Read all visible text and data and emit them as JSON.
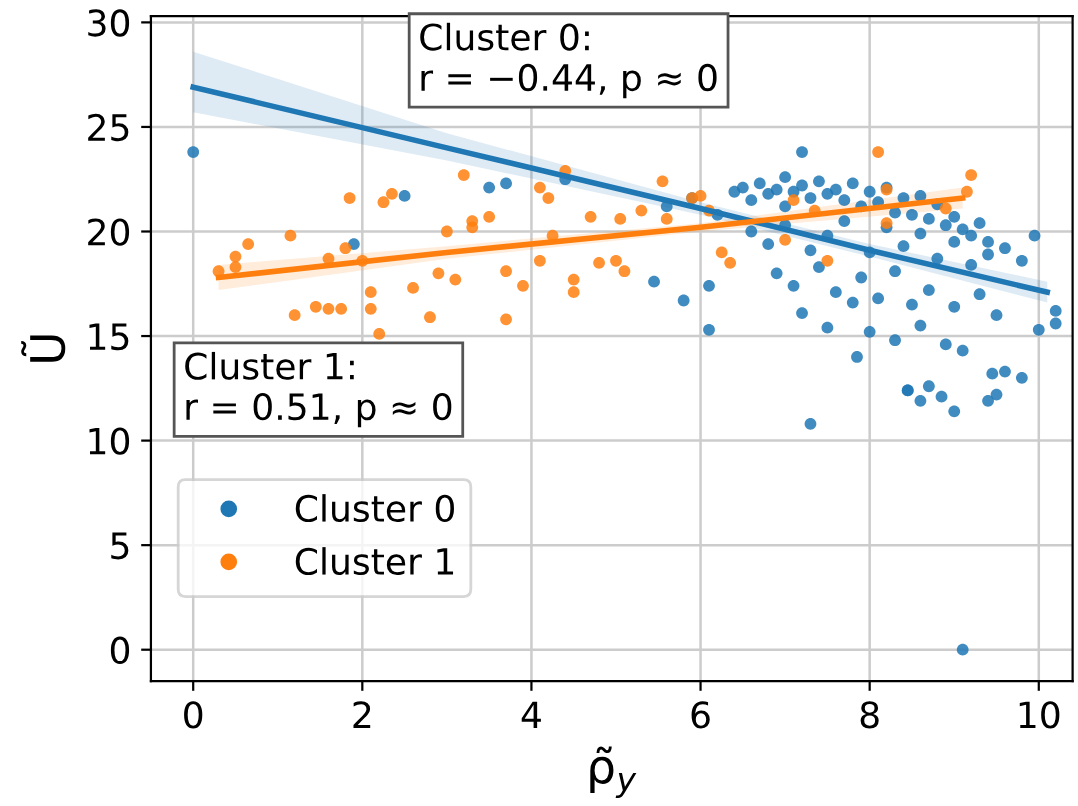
{
  "chart_data": {
    "type": "scatter",
    "xlabel": "ρ̃$_{y}$",
    "ylabel": "Ũ",
    "xlim": [
      -0.5,
      10.4
    ],
    "ylim": [
      -1.5,
      30.3
    ],
    "xticks": [
      0,
      2,
      4,
      6,
      8,
      10
    ],
    "yticks": [
      0,
      5,
      10,
      15,
      20,
      25,
      30
    ],
    "grid": true,
    "legend": "bottom left",
    "marker": "circle",
    "annotations": [
      "Cluster 0:\nr = −0.44, p ≈ 0",
      "Cluster 1:\nr = 0.51, p ≈ 0"
    ],
    "series": [
      {
        "name": "Cluster 0",
        "color": "#1f77b4",
        "x": [
          0,
          2.5,
          1.9,
          3.5,
          3.7,
          4.4,
          10.2,
          10.0,
          10.2,
          9.95,
          7.85,
          8.45,
          6.1,
          5.8,
          5.45,
          6.1,
          7.2,
          7.3,
          9.1,
          8.45,
          8.6,
          8.7,
          8.85,
          9.0,
          9.4,
          9.5,
          9.6,
          9.8,
          9.45,
          5.6,
          5.9,
          6.2,
          6.4,
          6.5,
          6.6,
          6.7,
          6.8,
          6.9,
          7.0,
          7.0,
          7.1,
          7.2,
          7.3,
          7.4,
          7.5,
          7.6,
          7.7,
          7.8,
          7.9,
          8.0,
          8.1,
          8.2,
          8.3,
          8.4,
          8.5,
          8.6,
          8.7,
          8.8,
          8.9,
          9.0,
          9.1,
          9.2,
          9.3,
          9.4,
          9.6,
          9.8,
          6.6,
          6.8,
          7.0,
          7.3,
          7.5,
          7.7,
          8.0,
          8.2,
          8.4,
          8.6,
          8.8,
          9.0,
          9.2,
          9.4,
          6.9,
          7.1,
          7.4,
          7.6,
          7.9,
          8.1,
          8.3,
          8.5,
          8.7,
          9.0,
          9.3,
          9.5,
          7.2,
          7.5,
          7.8,
          8.0,
          8.3,
          8.6,
          8.9,
          9.1
        ],
        "values": [
          23.8,
          21.7,
          19.4,
          22.1,
          22.3,
          22.5,
          16.2,
          15.3,
          15.6,
          19.8,
          14.0,
          12.4,
          15.3,
          16.7,
          17.6,
          17.4,
          23.8,
          10.8,
          0.0,
          12.4,
          11.9,
          12.6,
          12.1,
          11.4,
          11.9,
          12.2,
          13.3,
          13.0,
          13.2,
          21.2,
          21.6,
          20.8,
          21.9,
          22.1,
          21.5,
          22.3,
          21.8,
          22.0,
          21.2,
          22.6,
          21.9,
          22.2,
          21.6,
          22.4,
          21.8,
          22.0,
          21.5,
          22.3,
          21.2,
          21.9,
          21.4,
          22.1,
          20.9,
          21.6,
          20.8,
          21.7,
          20.6,
          21.3,
          20.3,
          20.7,
          20.1,
          19.8,
          20.4,
          19.5,
          19.2,
          18.6,
          20.0,
          19.4,
          20.3,
          19.1,
          19.8,
          20.5,
          19.0,
          20.2,
          19.3,
          19.9,
          18.7,
          19.5,
          18.4,
          18.9,
          18.0,
          17.4,
          18.3,
          17.1,
          17.8,
          16.8,
          18.1,
          16.5,
          17.2,
          16.4,
          17.0,
          16.0,
          16.1,
          15.4,
          16.6,
          15.2,
          14.8,
          15.5,
          14.6,
          14.3
        ]
      },
      {
        "name": "Cluster 1",
        "color": "#ff7f0e",
        "x": [
          0.3,
          0.5,
          0.5,
          0.65,
          1.15,
          1.2,
          1.45,
          1.6,
          1.75,
          1.85,
          2.25,
          2.35,
          2.2,
          2.1,
          2.1,
          1.8,
          2.0,
          1.6,
          2.8,
          3.2,
          2.6,
          2.9,
          3.1,
          3.0,
          3.3,
          3.3,
          3.5,
          3.7,
          3.7,
          3.9,
          4.1,
          4.2,
          4.4,
          4.25,
          4.5,
          4.5,
          4.1,
          4.8,
          4.7,
          8.1,
          9.2,
          9.15,
          8.2,
          5.55,
          5.05,
          5.1,
          5.0,
          6.25,
          6.35,
          7.5,
          7.0,
          7.35,
          7.1,
          5.9,
          6.0,
          5.3,
          5.6,
          6.1,
          8.9,
          8.2
        ],
        "values": [
          18.1,
          18.3,
          18.8,
          19.4,
          19.8,
          16.0,
          16.4,
          16.3,
          16.3,
          21.6,
          21.4,
          21.8,
          15.1,
          16.3,
          17.1,
          19.2,
          18.6,
          18.7,
          15.9,
          22.7,
          17.3,
          18.0,
          17.7,
          20.0,
          20.5,
          20.2,
          20.7,
          18.1,
          15.8,
          17.4,
          22.1,
          21.6,
          22.9,
          19.8,
          17.7,
          17.1,
          18.6,
          18.5,
          20.7,
          23.8,
          22.7,
          21.9,
          22.0,
          22.4,
          20.6,
          18.1,
          18.6,
          19.0,
          18.5,
          18.6,
          19.6,
          21.0,
          21.5,
          21.6,
          21.7,
          21.0,
          20.6,
          21.0,
          21.1,
          20.4
        ]
      },
      {
        "color": "#1f77b4",
        "type": "line",
        "marker": "none",
        "x": [
          0,
          3,
          6,
          8,
          10.1
        ],
        "values": [
          26.9,
          24.0,
          21.1,
          19.1,
          17.1
        ],
        "lower": [
          25.7,
          23.4,
          20.8,
          18.8,
          16.6
        ],
        "upper": [
          28.6,
          24.7,
          21.4,
          19.4,
          17.6
        ]
      },
      {
        "color": "#ff7f0e",
        "type": "line",
        "marker": "none",
        "x": [
          0.3,
          3,
          6,
          9.1
        ],
        "values": [
          17.8,
          19.0,
          20.2,
          21.6
        ],
        "lower": [
          17.2,
          18.7,
          20.0,
          21.1
        ],
        "upper": [
          18.4,
          19.3,
          20.4,
          22.1
        ]
      }
    ]
  }
}
